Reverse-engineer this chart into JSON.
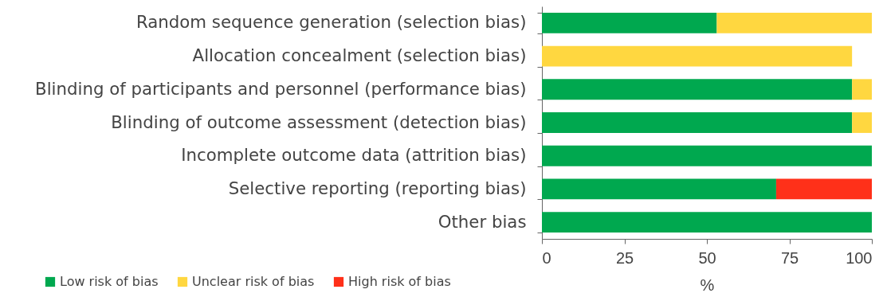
{
  "chart_data": {
    "type": "bar",
    "orientation": "horizontal",
    "stacked": true,
    "xlabel": "%",
    "categories": [
      "Random sequence generation (selection bias)",
      "Allocation concealment (selection bias)",
      "Blinding of participants and personnel (performance bias)",
      "Blinding of outcome assessment (detection bias)",
      "Incomplete outcome data (attrition bias)",
      "Selective reporting (reporting bias)",
      "Other bias"
    ],
    "series": [
      {
        "name": "Low risk of bias",
        "color": "#00a84f",
        "values": [
          53,
          null,
          94,
          94,
          100,
          71,
          100
        ]
      },
      {
        "name": "Unclear risk of bias",
        "color": "#ffd740",
        "values": [
          47,
          94,
          6,
          6,
          null,
          null,
          null
        ]
      },
      {
        "name": "High risk of bias",
        "color": "#ff3019",
        "values": [
          null,
          null,
          null,
          null,
          null,
          29,
          null
        ]
      }
    ],
    "xlim": [
      0,
      100
    ],
    "xticks": [
      0,
      25,
      50,
      75,
      100
    ],
    "legend": "bottom left",
    "grid": false
  }
}
